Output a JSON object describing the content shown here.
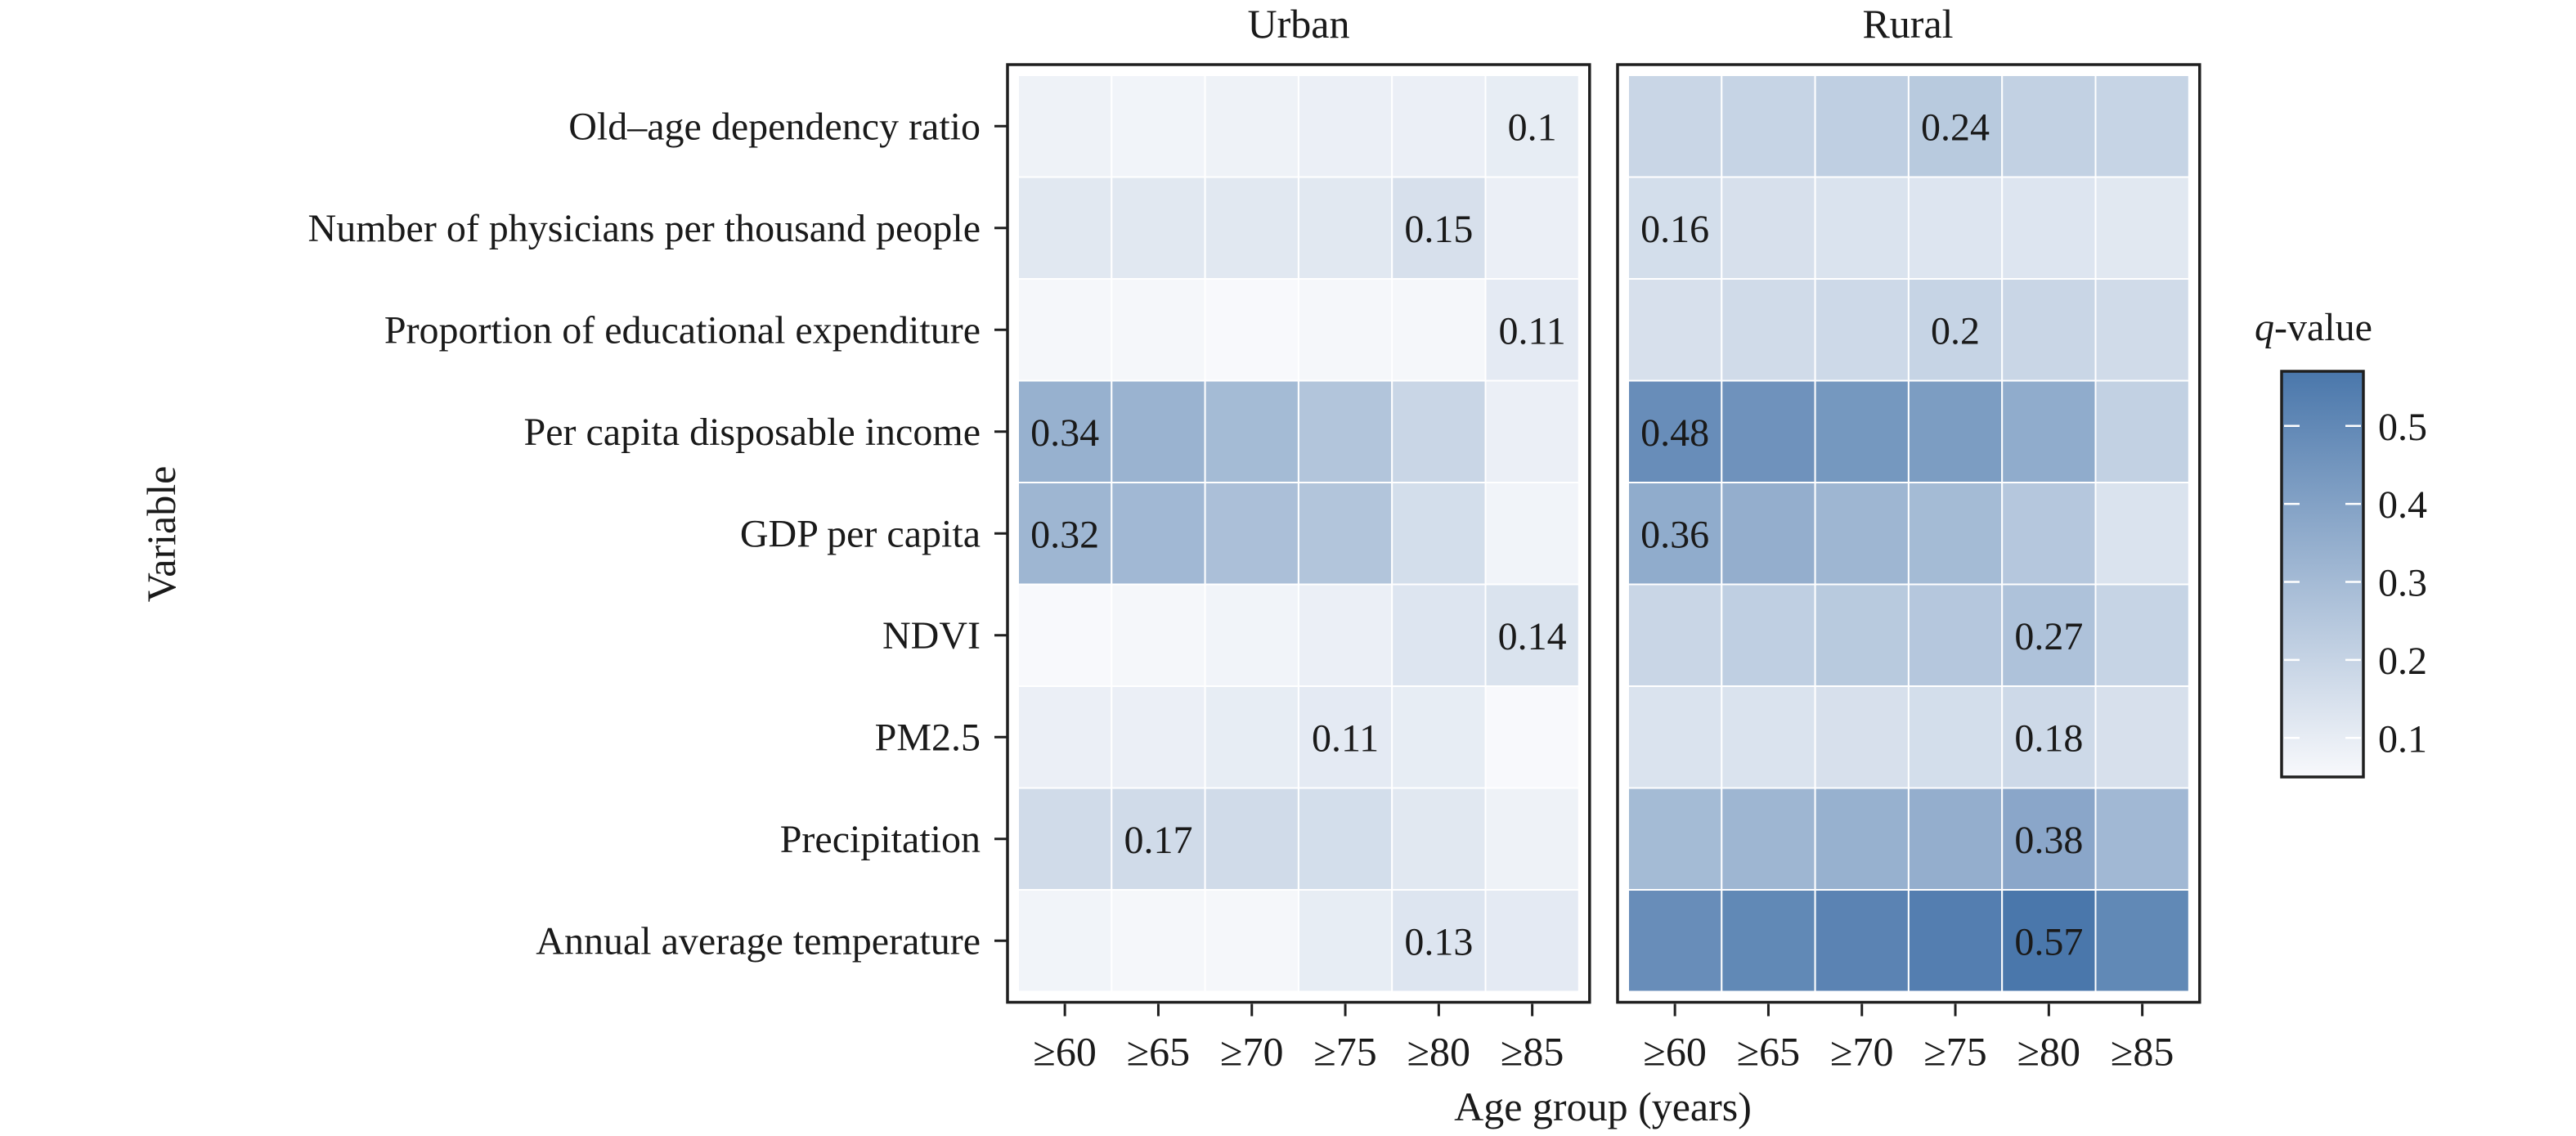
{
  "chart_data": {
    "type": "heatmap",
    "title": "",
    "xlabel": "Age group (years)",
    "ylabel": "Variable",
    "facets": [
      "Urban",
      "Rural"
    ],
    "x_categories": [
      "≥60",
      "≥65",
      "≥70",
      "≥75",
      "≥80",
      "≥85"
    ],
    "y_categories": [
      "Old–age dependency ratio",
      "Number of physicians per thousand people",
      "Proportion of educational expenditure",
      "Per capita disposable income",
      "GDP per capita",
      "NDVI",
      "PM2.5",
      "Precipitation",
      "Annual average temperature"
    ],
    "series": [
      {
        "name": "Urban",
        "values": [
          [
            0.08,
            0.07,
            0.08,
            0.09,
            0.09,
            0.1
          ],
          [
            0.12,
            0.12,
            0.12,
            0.12,
            0.15,
            0.09
          ],
          [
            0.06,
            0.06,
            0.05,
            0.06,
            0.06,
            0.11
          ],
          [
            0.34,
            0.33,
            0.3,
            0.26,
            0.19,
            0.09
          ],
          [
            0.32,
            0.31,
            0.28,
            0.26,
            0.16,
            0.07
          ],
          [
            0.05,
            0.06,
            0.07,
            0.09,
            0.13,
            0.14
          ],
          [
            0.09,
            0.09,
            0.1,
            0.11,
            0.1,
            0.05
          ],
          [
            0.17,
            0.17,
            0.17,
            0.16,
            0.12,
            0.08
          ],
          [
            0.07,
            0.06,
            0.06,
            0.1,
            0.13,
            0.11
          ]
        ],
        "annotations": [
          {
            "row": 0,
            "col": 5,
            "text": "0.1"
          },
          {
            "row": 1,
            "col": 4,
            "text": "0.15"
          },
          {
            "row": 2,
            "col": 5,
            "text": "0.11"
          },
          {
            "row": 3,
            "col": 0,
            "text": "0.34"
          },
          {
            "row": 4,
            "col": 0,
            "text": "0.32"
          },
          {
            "row": 5,
            "col": 5,
            "text": "0.14"
          },
          {
            "row": 6,
            "col": 3,
            "text": "0.11"
          },
          {
            "row": 7,
            "col": 1,
            "text": "0.17"
          },
          {
            "row": 8,
            "col": 4,
            "text": "0.13"
          }
        ]
      },
      {
        "name": "Rural",
        "values": [
          [
            0.19,
            0.2,
            0.22,
            0.24,
            0.21,
            0.2
          ],
          [
            0.16,
            0.15,
            0.14,
            0.13,
            0.13,
            0.12
          ],
          [
            0.15,
            0.17,
            0.18,
            0.2,
            0.19,
            0.17
          ],
          [
            0.48,
            0.46,
            0.44,
            0.42,
            0.36,
            0.21
          ],
          [
            0.36,
            0.35,
            0.32,
            0.3,
            0.25,
            0.14
          ],
          [
            0.19,
            0.22,
            0.24,
            0.25,
            0.27,
            0.2
          ],
          [
            0.14,
            0.14,
            0.15,
            0.16,
            0.18,
            0.15
          ],
          [
            0.3,
            0.32,
            0.34,
            0.35,
            0.38,
            0.31
          ],
          [
            0.48,
            0.5,
            0.52,
            0.54,
            0.57,
            0.5
          ]
        ],
        "annotations": [
          {
            "row": 0,
            "col": 3,
            "text": "0.24"
          },
          {
            "row": 1,
            "col": 0,
            "text": "0.16"
          },
          {
            "row": 2,
            "col": 3,
            "text": "0.2"
          },
          {
            "row": 3,
            "col": 0,
            "text": "0.48"
          },
          {
            "row": 4,
            "col": 0,
            "text": "0.36"
          },
          {
            "row": 5,
            "col": 4,
            "text": "0.27"
          },
          {
            "row": 6,
            "col": 4,
            "text": "0.18"
          },
          {
            "row": 7,
            "col": 4,
            "text": "0.38"
          },
          {
            "row": 8,
            "col": 4,
            "text": "0.57"
          }
        ]
      }
    ],
    "colorbar": {
      "title_italic": "q",
      "title_rest": "-value",
      "range": [
        0.05,
        0.57
      ],
      "ticks": [
        0.1,
        0.2,
        0.3,
        0.4,
        0.5
      ],
      "tick_labels": [
        "0.1",
        "0.2",
        "0.3",
        "0.4",
        "0.5"
      ],
      "low_color": "#f8f9fc",
      "high_color": "#4a77ab"
    },
    "legend_position": "right",
    "grid": false
  }
}
